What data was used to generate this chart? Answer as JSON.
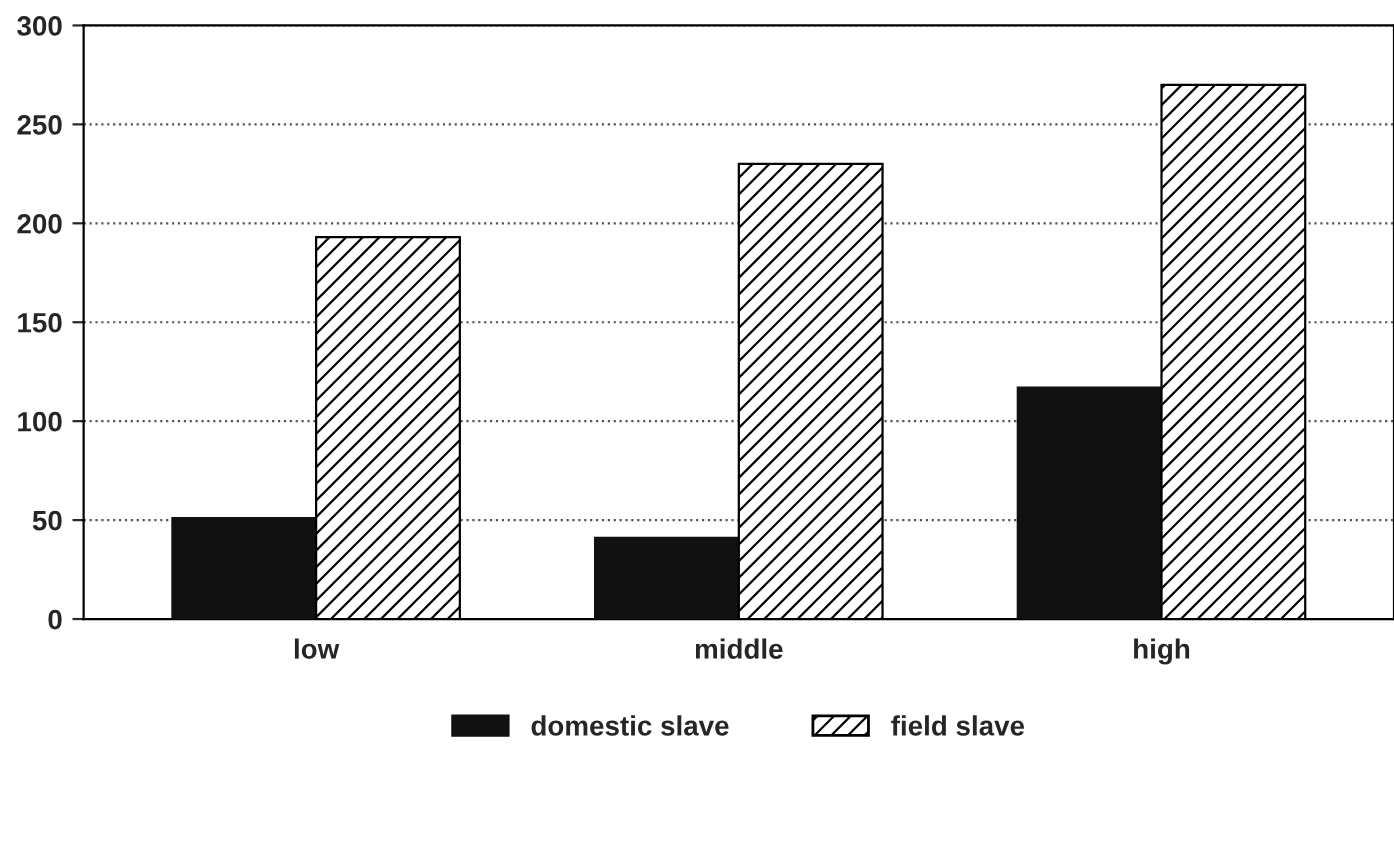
{
  "chart_data": {
    "type": "bar",
    "categories": [
      "low",
      "middle",
      "high"
    ],
    "series": [
      {
        "name": "domestic slave",
        "color": "#111111",
        "values": [
          51,
          41,
          117
        ]
      },
      {
        "name": "field slave",
        "color": "#000000",
        "values": [
          193,
          230,
          270
        ]
      }
    ],
    "ylim": [
      0,
      300
    ],
    "yticks": [
      0,
      50,
      100,
      150,
      200,
      250,
      300
    ],
    "grid": "y",
    "legend": "bottom"
  }
}
